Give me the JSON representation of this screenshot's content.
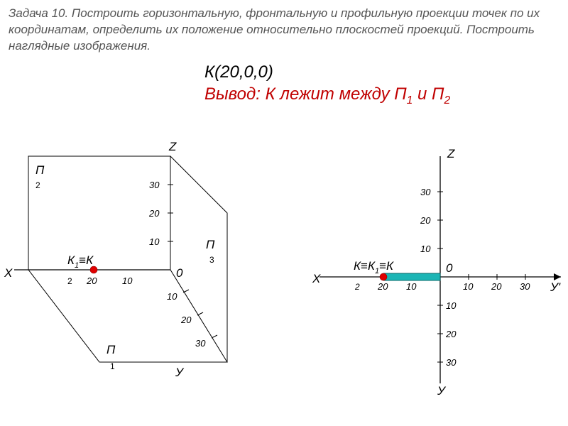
{
  "problem_text": "Задача 10. Построить горизонтальную, фронтальную и профильную проекции точек по их координатам, определить их положение относительно плоскостей проекций. Построить наглядные изображения.",
  "point_coord": "К(20,0,0)",
  "conclusion_html": "Вывод: К лежит между П<span class='sub'>1</span> и П<span class='sub'>2</span>",
  "colors": {
    "text_gray": "#555555",
    "red_text": "#c00000",
    "point_fill": "#e00000",
    "cyan_fill": "#1cb5b5",
    "black": "#000000"
  },
  "left_diagram": {
    "type": "axonometric-projection",
    "origin_label": "0",
    "axes": {
      "X": "Х",
      "Y": "У",
      "Z": "Z"
    },
    "planes": {
      "P1": "П",
      "P2": "П",
      "P3": "П"
    },
    "z_ticks": [
      10,
      20,
      30
    ],
    "y_ticks": [
      10,
      20,
      30
    ],
    "x_ticks": [
      10,
      20
    ],
    "point_label": "К₁≡К",
    "point_x": 20
  },
  "right_diagram": {
    "type": "orthographic-epure",
    "origin_label": "0",
    "axes": {
      "X": "Х",
      "Yp": "У'",
      "Yd": "У",
      "Z": "Z"
    },
    "ticks": [
      10,
      20,
      30
    ],
    "point_label": "К≡К ≡К",
    "cyan_segment": {
      "from_x": 20,
      "to_x": 0
    }
  }
}
